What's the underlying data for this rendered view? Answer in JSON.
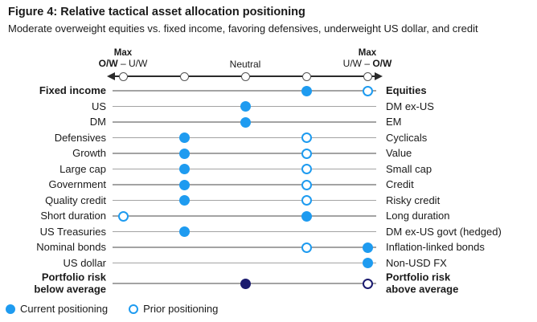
{
  "figure": {
    "title": "Figure 4: Relative tactical asset allocation positioning",
    "subtitle": "Moderate overweight equities vs. fixed income, favoring defensives, underweight US dollar, and credit"
  },
  "axis": {
    "left": {
      "line1": "Max",
      "bold": "O/W",
      "rest": " – U/W"
    },
    "center": "Neutral",
    "right": {
      "line1": "Max",
      "rest": "U/W – ",
      "bold": "O/W"
    }
  },
  "legend": {
    "current_label": "Current positioning",
    "prior_label": "Prior positioning"
  },
  "colors": {
    "current_dot": "#1E9BF0",
    "prior_stroke": "#1E9BF0",
    "risk_current_dot": "#1B1B6F",
    "risk_prior_stroke": "#1B1B6F",
    "row_line": "#A3A3A3",
    "axis_line": "#2B2B2B",
    "axis_tick_stroke": "#555555",
    "text": "#1A1A1A"
  },
  "chart_data": {
    "type": "scatter",
    "title": "Relative tactical asset allocation positioning",
    "x_axis": {
      "tick_count": 5,
      "left_end_label": "Max O/W – U/W",
      "center_label": "Neutral",
      "right_end_label": "Max U/W – O/W",
      "scale_note": "positions 1–5: 1 = max overweight of left asset, 3 = neutral, 5 = max overweight of right asset"
    },
    "series_legend": [
      "Current positioning",
      "Prior positioning"
    ],
    "rows": [
      {
        "left": "Fixed income",
        "right": "Equities",
        "bold": true,
        "current": 4,
        "prior": 5
      },
      {
        "left": "US",
        "right": "DM ex-US",
        "bold": false,
        "current": 3,
        "prior": null
      },
      {
        "left": "DM",
        "right": "EM",
        "bold": false,
        "current": 3,
        "prior": null
      },
      {
        "left": "Defensives",
        "right": "Cyclicals",
        "bold": false,
        "current": 2,
        "prior": 4
      },
      {
        "left": "Growth",
        "right": "Value",
        "bold": false,
        "current": 2,
        "prior": 4
      },
      {
        "left": "Large cap",
        "right": "Small cap",
        "bold": false,
        "current": 2,
        "prior": 4
      },
      {
        "left": "Government",
        "right": "Credit",
        "bold": false,
        "current": 2,
        "prior": 4
      },
      {
        "left": "Quality credit",
        "right": "Risky credit",
        "bold": false,
        "current": 2,
        "prior": 4
      },
      {
        "left": "Short duration",
        "right": "Long duration",
        "bold": false,
        "current": 4,
        "prior": 1
      },
      {
        "left": "US Treasuries",
        "right": "DM ex-US govt (hedged)",
        "bold": false,
        "current": 2,
        "prior": null
      },
      {
        "left": "Nominal bonds",
        "right": "Inflation-linked bonds",
        "bold": false,
        "current": 5,
        "prior": 4
      },
      {
        "left": "US dollar",
        "right": "Non-USD FX",
        "bold": false,
        "current": 5,
        "prior": null
      },
      {
        "left": "Portfolio risk\nbelow average",
        "right": "Portfolio risk\nabove average",
        "bold": true,
        "current": 3,
        "prior": 5,
        "variant": "risk"
      }
    ]
  }
}
